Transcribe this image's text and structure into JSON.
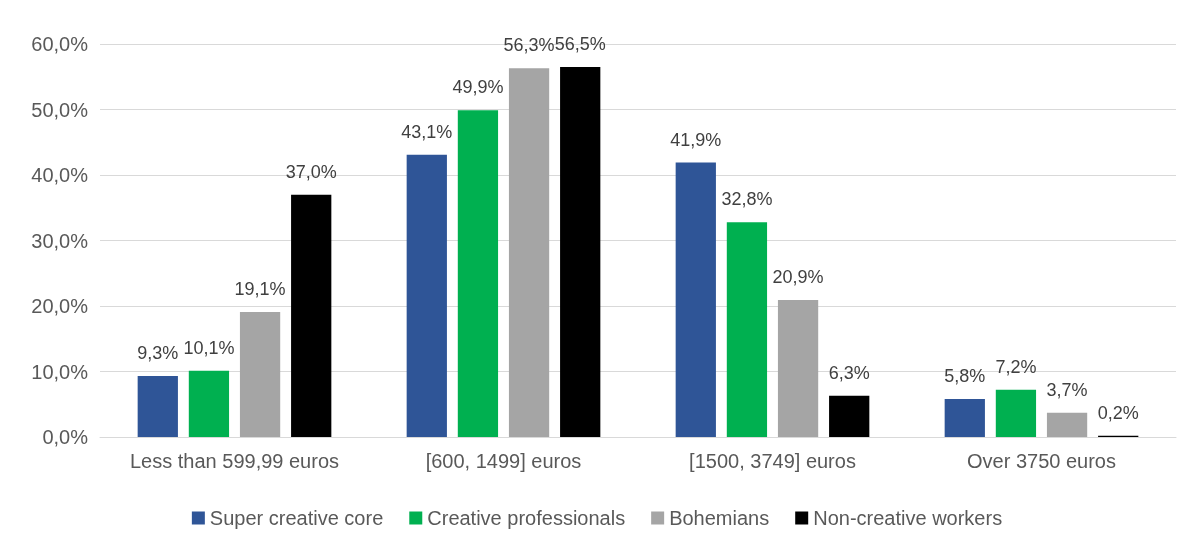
{
  "chart_data": {
    "type": "bar",
    "categories": [
      "Less than 599,99 euros",
      "[600, 1499] euros",
      "[1500, 3749] euros",
      "Over 3750 euros"
    ],
    "series": [
      {
        "name": "Super creative core",
        "color": "#2f5597",
        "values": [
          9.3,
          43.1,
          41.9,
          5.8
        ],
        "value_labels": [
          "9,3%",
          "43,1%",
          "41,9%",
          "5,8%"
        ]
      },
      {
        "name": "Creative professionals",
        "color": "#00b050",
        "values": [
          10.1,
          49.9,
          32.8,
          7.2
        ],
        "value_labels": [
          "10,1%",
          "49,9%",
          "32,8%",
          "7,2%"
        ]
      },
      {
        "name": "Bohemians",
        "color": "#a5a5a5",
        "values": [
          19.1,
          56.3,
          20.9,
          3.7
        ],
        "value_labels": [
          "19,1%",
          "56,3%",
          "20,9%",
          "3,7%"
        ]
      },
      {
        "name": "Non-creative workers",
        "color": "#000000",
        "values": [
          37.0,
          56.5,
          6.3,
          0.2
        ],
        "value_labels": [
          "37,0%",
          "56,5%",
          "6,3%",
          "0,2%"
        ]
      }
    ],
    "ylim": [
      0,
      60
    ],
    "yticks": [
      {
        "value": 0,
        "label": "0,0%"
      },
      {
        "value": 10,
        "label": "10,0%"
      },
      {
        "value": 20,
        "label": "20,0%"
      },
      {
        "value": 30,
        "label": "30,0%"
      },
      {
        "value": 40,
        "label": "40,0%"
      },
      {
        "value": 50,
        "label": "50,0%"
      },
      {
        "value": 60,
        "label": "60,0%"
      }
    ],
    "grid": "y",
    "legend": "bottom"
  }
}
